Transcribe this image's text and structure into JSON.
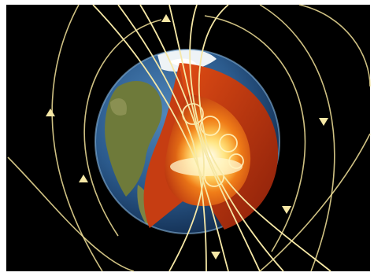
{
  "illustration": {
    "subject": "earth-magnetic-field-cutaway-icon",
    "colors": {
      "background": "#000000",
      "border": "#ffffff",
      "field_lines": "#f3e39a",
      "ocean": "#2e5f95",
      "land": "#6e7a3a",
      "ice": "#eef3f6",
      "mantle": "#b8330f",
      "outer_core": "#ef6a14",
      "inner_core": "#ffd45a"
    }
  }
}
